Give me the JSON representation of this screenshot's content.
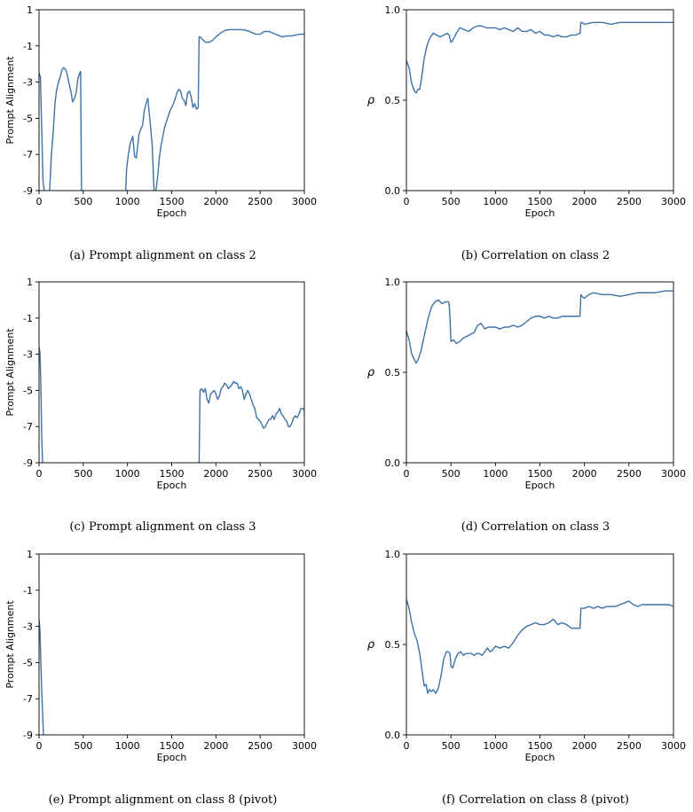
{
  "chart_data": [
    {
      "type": "line",
      "caption": "(a) Prompt alignment on class 2",
      "xlabel": "Epoch",
      "ylabel": "Prompt Alignment",
      "xlim": [
        0,
        3000
      ],
      "ylim": [
        -9,
        1
      ],
      "xticks": [
        "0",
        "500",
        "1000",
        "1500",
        "2000",
        "2500",
        "3000"
      ],
      "yticks": [
        "1",
        "-1",
        "-3",
        "-5",
        "-7",
        "-9"
      ],
      "color": "#3d72a8",
      "segments": [
        {
          "x": [
            0,
            15,
            30,
            45,
            60
          ],
          "y": [
            -2.5,
            -2.7,
            -5.5,
            -8.5,
            -9
          ]
        },
        {
          "x": [
            120,
            140,
            160,
            180,
            200,
            220,
            240,
            260,
            280,
            300,
            320,
            340,
            360,
            380,
            400,
            420,
            440,
            460,
            470,
            480
          ],
          "y": [
            -9,
            -7.0,
            -5.8,
            -4.2,
            -3.4,
            -3.0,
            -2.7,
            -2.3,
            -2.2,
            -2.3,
            -2.6,
            -3.1,
            -3.5,
            -4.1,
            -3.9,
            -3.6,
            -2.8,
            -2.5,
            -2.4,
            -9
          ]
        },
        {
          "x": [
            980,
            990,
            1010,
            1030,
            1060,
            1080,
            1100,
            1130,
            1150,
            1170,
            1190,
            1210,
            1230,
            1250,
            1280,
            1300
          ],
          "y": [
            -9,
            -7.8,
            -7.0,
            -6.4,
            -6.0,
            -7.1,
            -7.2,
            -5.9,
            -5.6,
            -5.4,
            -4.6,
            -4.2,
            -3.9,
            -4.9,
            -6.5,
            -9
          ]
        },
        {
          "x": [
            1320,
            1340,
            1360,
            1380,
            1400,
            1420,
            1440,
            1460,
            1480,
            1500,
            1520,
            1540,
            1560,
            1580,
            1600,
            1620,
            1640,
            1660,
            1680,
            1700,
            1720,
            1740,
            1760,
            1780,
            1800,
            1810,
            1820,
            1840,
            1860,
            1880,
            1900,
            1920,
            1960,
            2000,
            2050,
            2100,
            2150,
            2200,
            2250,
            2300,
            2350,
            2400,
            2450,
            2500,
            2550,
            2600,
            2650,
            2700,
            2750,
            2800,
            2850,
            2900,
            2950,
            3000
          ],
          "y": [
            -9,
            -8.3,
            -7.2,
            -6.5,
            -6.0,
            -5.5,
            -5.2,
            -4.9,
            -4.6,
            -4.4,
            -4.2,
            -3.9,
            -3.6,
            -3.4,
            -3.5,
            -3.9,
            -4.0,
            -4.3,
            -3.6,
            -3.5,
            -3.8,
            -4.4,
            -4.2,
            -4.5,
            -4.4,
            -0.5,
            -0.5,
            -0.6,
            -0.7,
            -0.8,
            -0.8,
            -0.8,
            -0.7,
            -0.5,
            -0.3,
            -0.15,
            -0.1,
            -0.1,
            -0.1,
            -0.1,
            -0.15,
            -0.25,
            -0.35,
            -0.35,
            -0.2,
            -0.2,
            -0.3,
            -0.4,
            -0.5,
            -0.45,
            -0.45,
            -0.4,
            -0.35,
            -0.35
          ]
        }
      ]
    },
    {
      "type": "line",
      "caption": "(b) Correlation on class 2",
      "xlabel": "Epoch",
      "ylabel": "ρ",
      "xlim": [
        0,
        3000
      ],
      "ylim": [
        0,
        1
      ],
      "xticks": [
        "0",
        "500",
        "1000",
        "1500",
        "2000",
        "2500",
        "3000"
      ],
      "yticks": [
        "1.0",
        "0.5",
        "0.0"
      ],
      "color": "#3d72a8",
      "segments": [
        {
          "x": [
            0,
            30,
            60,
            90,
            110,
            130,
            150,
            170,
            200,
            230,
            260,
            300,
            340,
            380,
            420,
            460,
            480,
            490,
            500,
            520,
            560,
            600,
            650,
            700,
            750,
            800,
            850,
            900,
            950,
            1000,
            1050,
            1100,
            1150,
            1200,
            1250,
            1300,
            1350,
            1400,
            1450,
            1500,
            1550,
            1600,
            1650,
            1700,
            1750,
            1800,
            1850,
            1900,
            1950,
            1960,
            1970,
            2000,
            2100,
            2200,
            2300,
            2400,
            2500,
            2600,
            2700,
            2800,
            2900,
            3000
          ],
          "y": [
            0.72,
            0.68,
            0.59,
            0.55,
            0.54,
            0.56,
            0.56,
            0.62,
            0.73,
            0.8,
            0.84,
            0.87,
            0.86,
            0.85,
            0.86,
            0.87,
            0.86,
            0.84,
            0.82,
            0.83,
            0.87,
            0.9,
            0.89,
            0.88,
            0.9,
            0.91,
            0.91,
            0.9,
            0.9,
            0.9,
            0.89,
            0.9,
            0.89,
            0.88,
            0.9,
            0.88,
            0.88,
            0.89,
            0.87,
            0.88,
            0.86,
            0.86,
            0.85,
            0.86,
            0.85,
            0.85,
            0.86,
            0.86,
            0.87,
            0.93,
            0.93,
            0.92,
            0.93,
            0.93,
            0.92,
            0.93,
            0.93,
            0.93,
            0.93,
            0.93,
            0.93,
            0.93
          ]
        }
      ]
    },
    {
      "type": "line",
      "caption": "(c) Prompt alignment on class 3",
      "xlabel": "Epoch",
      "ylabel": "Prompt Alignment",
      "xlim": [
        0,
        3000
      ],
      "ylim": [
        -9,
        1
      ],
      "xticks": [
        "0",
        "500",
        "1000",
        "1500",
        "2000",
        "2500",
        "3000"
      ],
      "yticks": [
        "1",
        "-1",
        "-3",
        "-5",
        "-7",
        "-9"
      ],
      "color": "#3d72a8",
      "segments": [
        {
          "x": [
            0,
            10,
            20,
            30,
            40
          ],
          "y": [
            -2.6,
            -2.9,
            -4.5,
            -7.5,
            -9
          ]
        },
        {
          "x": [
            1810,
            1820,
            1840,
            1860,
            1880,
            1900,
            1920,
            1940,
            1960,
            1980,
            2000,
            2020,
            2040,
            2060,
            2080,
            2100,
            2120,
            2140,
            2160,
            2180,
            2200,
            2220,
            2240,
            2260,
            2280,
            2300,
            2320,
            2340,
            2360,
            2380,
            2400,
            2420,
            2440,
            2460,
            2480,
            2500,
            2520,
            2540,
            2560,
            2580,
            2600,
            2620,
            2640,
            2660,
            2680,
            2700,
            2720,
            2740,
            2760,
            2780,
            2800,
            2820,
            2840,
            2860,
            2880,
            2900,
            2920,
            2940,
            2960,
            2980,
            3000
          ],
          "y": [
            -9,
            -5.0,
            -4.9,
            -5.1,
            -4.9,
            -5.5,
            -5.7,
            -5.2,
            -5.1,
            -5.0,
            -5.2,
            -5.5,
            -5.3,
            -4.9,
            -4.8,
            -4.6,
            -4.7,
            -4.9,
            -4.8,
            -4.7,
            -4.5,
            -4.6,
            -4.6,
            -4.9,
            -4.8,
            -5.0,
            -5.5,
            -5.2,
            -5.0,
            -5.2,
            -5.5,
            -5.8,
            -6.0,
            -6.5,
            -6.6,
            -6.7,
            -6.9,
            -7.1,
            -7.0,
            -6.8,
            -6.6,
            -6.6,
            -6.4,
            -6.6,
            -6.3,
            -6.2,
            -6.0,
            -6.3,
            -6.4,
            -6.6,
            -6.7,
            -7.0,
            -7.0,
            -6.8,
            -6.5,
            -6.4,
            -6.5,
            -6.3,
            -6.0,
            -6.0,
            -6.1
          ]
        }
      ]
    },
    {
      "type": "line",
      "caption": "(d) Correlation on class 3",
      "xlabel": "Epoch",
      "ylabel": "ρ",
      "xlim": [
        0,
        3000
      ],
      "ylim": [
        0,
        1
      ],
      "xticks": [
        "0",
        "500",
        "1000",
        "1500",
        "2000",
        "2500",
        "3000"
      ],
      "yticks": [
        "1.0",
        "0.5",
        "0.0"
      ],
      "color": "#3d72a8",
      "segments": [
        {
          "x": [
            0,
            30,
            60,
            90,
            110,
            130,
            160,
            200,
            240,
            280,
            320,
            360,
            400,
            440,
            470,
            480,
            490,
            500,
            530,
            560,
            600,
            640,
            680,
            720,
            760,
            800,
            840,
            880,
            920,
            960,
            1000,
            1050,
            1100,
            1150,
            1200,
            1250,
            1300,
            1350,
            1400,
            1450,
            1500,
            1550,
            1600,
            1650,
            1700,
            1750,
            1800,
            1850,
            1900,
            1950,
            1960,
            1970,
            2000,
            2050,
            2100,
            2200,
            2300,
            2400,
            2500,
            2600,
            2700,
            2800,
            2900,
            3000
          ],
          "y": [
            0.73,
            0.68,
            0.6,
            0.57,
            0.55,
            0.57,
            0.61,
            0.7,
            0.79,
            0.86,
            0.89,
            0.9,
            0.88,
            0.89,
            0.89,
            0.88,
            0.8,
            0.67,
            0.68,
            0.66,
            0.67,
            0.69,
            0.7,
            0.71,
            0.72,
            0.76,
            0.77,
            0.74,
            0.75,
            0.75,
            0.75,
            0.74,
            0.75,
            0.75,
            0.76,
            0.75,
            0.76,
            0.78,
            0.8,
            0.81,
            0.81,
            0.8,
            0.81,
            0.8,
            0.8,
            0.81,
            0.81,
            0.81,
            0.81,
            0.81,
            0.93,
            0.92,
            0.91,
            0.93,
            0.94,
            0.93,
            0.93,
            0.92,
            0.93,
            0.94,
            0.94,
            0.94,
            0.95,
            0.95
          ]
        }
      ]
    },
    {
      "type": "line",
      "caption": "(e) Prompt alignment on class 8 (pivot)",
      "xlabel": "Epoch",
      "ylabel": "Prompt Alignment",
      "xlim": [
        0,
        3000
      ],
      "ylim": [
        -9,
        1
      ],
      "xticks": [
        "0",
        "500",
        "1000",
        "1500",
        "2000",
        "2500",
        "3000"
      ],
      "yticks": [
        "1",
        "-1",
        "-3",
        "-5",
        "-7",
        "-9"
      ],
      "color": "#3d72a8",
      "segments": [
        {
          "x": [
            0,
            10,
            20,
            30,
            40,
            50
          ],
          "y": [
            -2.6,
            -3.2,
            -5.0,
            -6.5,
            -7.8,
            -9
          ]
        }
      ]
    },
    {
      "type": "line",
      "caption": "(f) Correlation on class 8 (pivot)",
      "xlabel": "Epoch",
      "ylabel": "ρ",
      "xlim": [
        0,
        3000
      ],
      "ylim": [
        0,
        1
      ],
      "xticks": [
        "0",
        "500",
        "1000",
        "1500",
        "2000",
        "2500",
        "3000"
      ],
      "yticks": [
        "1.0",
        "0.5",
        "0.0"
      ],
      "color": "#3d72a8",
      "segments": [
        {
          "x": [
            0,
            30,
            60,
            90,
            120,
            150,
            180,
            200,
            220,
            240,
            260,
            280,
            300,
            330,
            360,
            390,
            420,
            450,
            470,
            490,
            500,
            520,
            550,
            580,
            610,
            640,
            670,
            700,
            730,
            760,
            790,
            820,
            850,
            880,
            910,
            940,
            970,
            1000,
            1050,
            1100,
            1150,
            1200,
            1250,
            1300,
            1350,
            1400,
            1450,
            1500,
            1550,
            1600,
            1650,
            1700,
            1750,
            1800,
            1850,
            1900,
            1950,
            1960,
            1980,
            2000,
            2050,
            2100,
            2150,
            2200,
            2250,
            2300,
            2350,
            2400,
            2450,
            2500,
            2550,
            2600,
            2650,
            2700,
            2750,
            2800,
            2850,
            2900,
            2950,
            3000
          ],
          "y": [
            0.75,
            0.7,
            0.62,
            0.56,
            0.52,
            0.45,
            0.34,
            0.27,
            0.28,
            0.23,
            0.25,
            0.24,
            0.25,
            0.23,
            0.26,
            0.33,
            0.42,
            0.46,
            0.46,
            0.45,
            0.38,
            0.37,
            0.42,
            0.45,
            0.46,
            0.44,
            0.45,
            0.45,
            0.45,
            0.44,
            0.45,
            0.45,
            0.44,
            0.46,
            0.48,
            0.46,
            0.47,
            0.49,
            0.48,
            0.49,
            0.48,
            0.51,
            0.55,
            0.58,
            0.6,
            0.61,
            0.62,
            0.61,
            0.61,
            0.62,
            0.64,
            0.61,
            0.62,
            0.61,
            0.59,
            0.59,
            0.59,
            0.7,
            0.7,
            0.7,
            0.71,
            0.7,
            0.71,
            0.7,
            0.71,
            0.71,
            0.71,
            0.72,
            0.73,
            0.74,
            0.72,
            0.71,
            0.72,
            0.72,
            0.72,
            0.72,
            0.72,
            0.72,
            0.72,
            0.71
          ]
        }
      ]
    }
  ]
}
